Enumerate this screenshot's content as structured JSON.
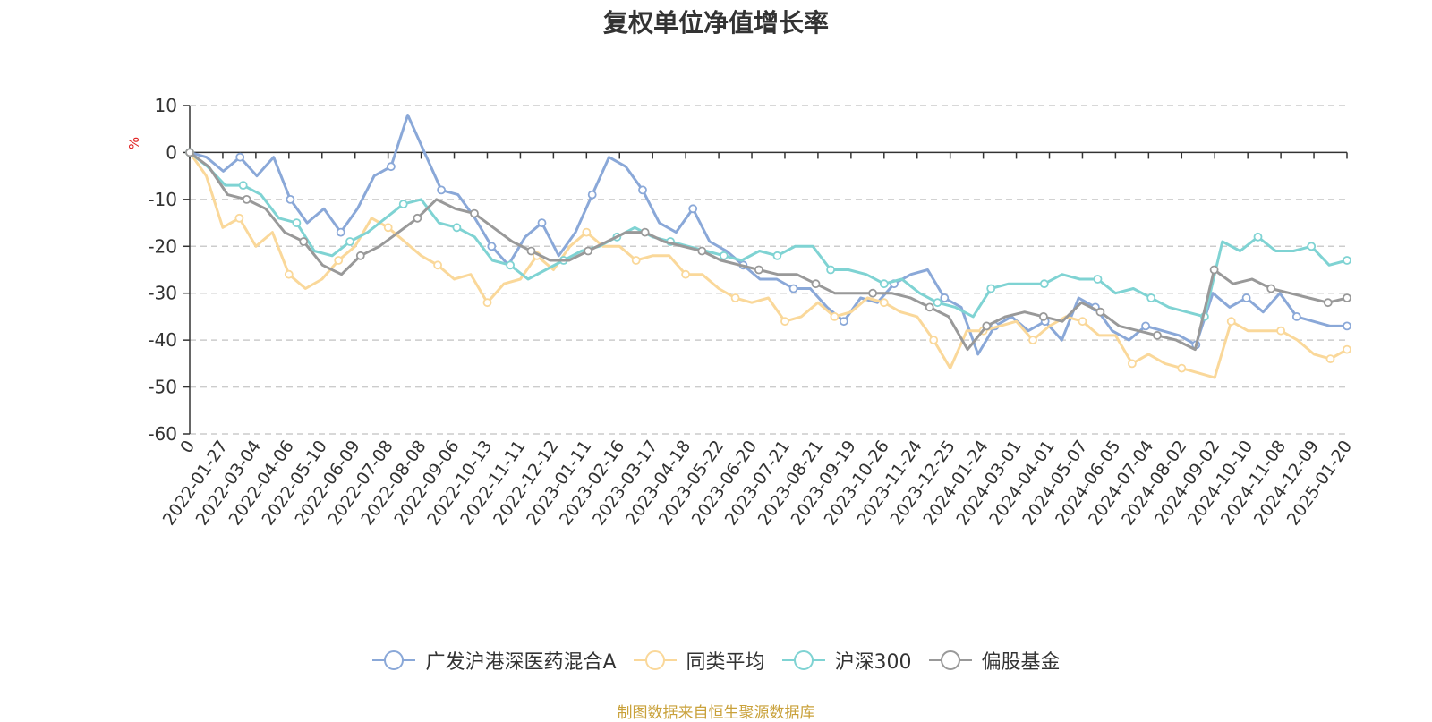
{
  "chart_data": {
    "type": "line",
    "title": "复权单位净值增长率",
    "ylabel": "%",
    "ylim": [
      -60,
      10
    ],
    "yticks": [
      10,
      0,
      -10,
      -20,
      -30,
      -40,
      -50,
      -60
    ],
    "x_tick_labels": [
      "0",
      "2022-01-27",
      "2022-03-04",
      "2022-04-06",
      "2022-05-10",
      "2022-06-09",
      "2022-07-08",
      "2022-08-08",
      "2022-09-06",
      "2022-10-13",
      "2022-11-11",
      "2022-12-12",
      "2023-01-11",
      "2023-02-16",
      "2023-03-17",
      "2023-04-18",
      "2023-05-22",
      "2023-06-20",
      "2023-07-21",
      "2023-08-21",
      "2023-09-19",
      "2023-10-26",
      "2023-11-24",
      "2023-12-25",
      "2024-01-24",
      "2024-03-01",
      "2024-04-01",
      "2024-05-07",
      "2024-06-05",
      "2024-07-04",
      "2024-08-02",
      "2024-09-02",
      "2024-10-10",
      "2024-11-08",
      "2024-12-09",
      "2025-01-20"
    ],
    "grid": true,
    "legend_position": "bottom",
    "series": [
      {
        "name": "广发沪港深医药混合A",
        "color": "#8aa8d8",
        "values": [
          0,
          -1,
          -4,
          -1,
          -5,
          -1,
          -10,
          -15,
          -12,
          -17,
          -12,
          -5,
          -3,
          8,
          0,
          -8,
          -9,
          -14,
          -20,
          -24,
          -18,
          -15,
          -22,
          -17,
          -9,
          -1,
          -3,
          -8,
          -15,
          -17,
          -12,
          -19,
          -21,
          -24,
          -27,
          -27,
          -29,
          -29,
          -33,
          -36,
          -31,
          -32,
          -28,
          -26,
          -25,
          -31,
          -33,
          -43,
          -37,
          -35,
          -38,
          -36,
          -40,
          -31,
          -33,
          -38,
          -40,
          -37,
          -38,
          -39,
          -41,
          -30,
          -33,
          -31,
          -34,
          -30,
          -35,
          -36,
          -37,
          -37
        ]
      },
      {
        "name": "同类平均",
        "color": "#fad89a",
        "values": [
          0,
          -5,
          -16,
          -14,
          -20,
          -17,
          -26,
          -29,
          -27,
          -23,
          -20,
          -14,
          -16,
          -19,
          -22,
          -24,
          -27,
          -26,
          -32,
          -28,
          -27,
          -22,
          -25,
          -20,
          -17,
          -20,
          -20,
          -23,
          -22,
          -22,
          -26,
          -26,
          -29,
          -31,
          -32,
          -31,
          -36,
          -35,
          -32,
          -35,
          -34,
          -31,
          -32,
          -34,
          -35,
          -40,
          -46,
          -38,
          -38,
          -37,
          -36,
          -40,
          -37,
          -35,
          -36,
          -39,
          -39,
          -45,
          -43,
          -45,
          -46,
          -47,
          -48,
          -36,
          -38,
          -38,
          -38,
          -40,
          -43,
          -44,
          -42
        ]
      },
      {
        "name": "沪深300",
        "color": "#7fd3d3",
        "values": [
          0,
          -3,
          -7,
          -7,
          -9,
          -14,
          -15,
          -21,
          -22,
          -19,
          -17,
          -14,
          -11,
          -10,
          -15,
          -16,
          -18,
          -23,
          -24,
          -27,
          -25,
          -23,
          -21,
          -20,
          -18,
          -16,
          -18,
          -19,
          -20,
          -21,
          -22,
          -23,
          -21,
          -22,
          -20,
          -20,
          -25,
          -25,
          -26,
          -28,
          -27,
          -30,
          -32,
          -33,
          -35,
          -29,
          -28,
          -28,
          -28,
          -26,
          -27,
          -27,
          -30,
          -29,
          -31,
          -33,
          -34,
          -35,
          -19,
          -21,
          -18,
          -21,
          -21,
          -20,
          -24,
          -23
        ]
      },
      {
        "name": "偏股基金",
        "color": "#999999",
        "values": [
          0,
          -3,
          -9,
          -10,
          -12,
          -17,
          -19,
          -24,
          -26,
          -22,
          -20,
          -17,
          -14,
          -10,
          -12,
          -13,
          -16,
          -19,
          -21,
          -23,
          -23,
          -21,
          -19,
          -17,
          -17,
          -19,
          -20,
          -21,
          -23,
          -24,
          -25,
          -26,
          -26,
          -28,
          -30,
          -30,
          -30,
          -30,
          -31,
          -33,
          -35,
          -42,
          -37,
          -35,
          -34,
          -35,
          -36,
          -32,
          -34,
          -37,
          -38,
          -39,
          -40,
          -42,
          -25,
          -28,
          -27,
          -29,
          -30,
          -31,
          -32,
          -31
        ]
      }
    ]
  },
  "source_text": "制图数据来自恒生聚源数据库"
}
